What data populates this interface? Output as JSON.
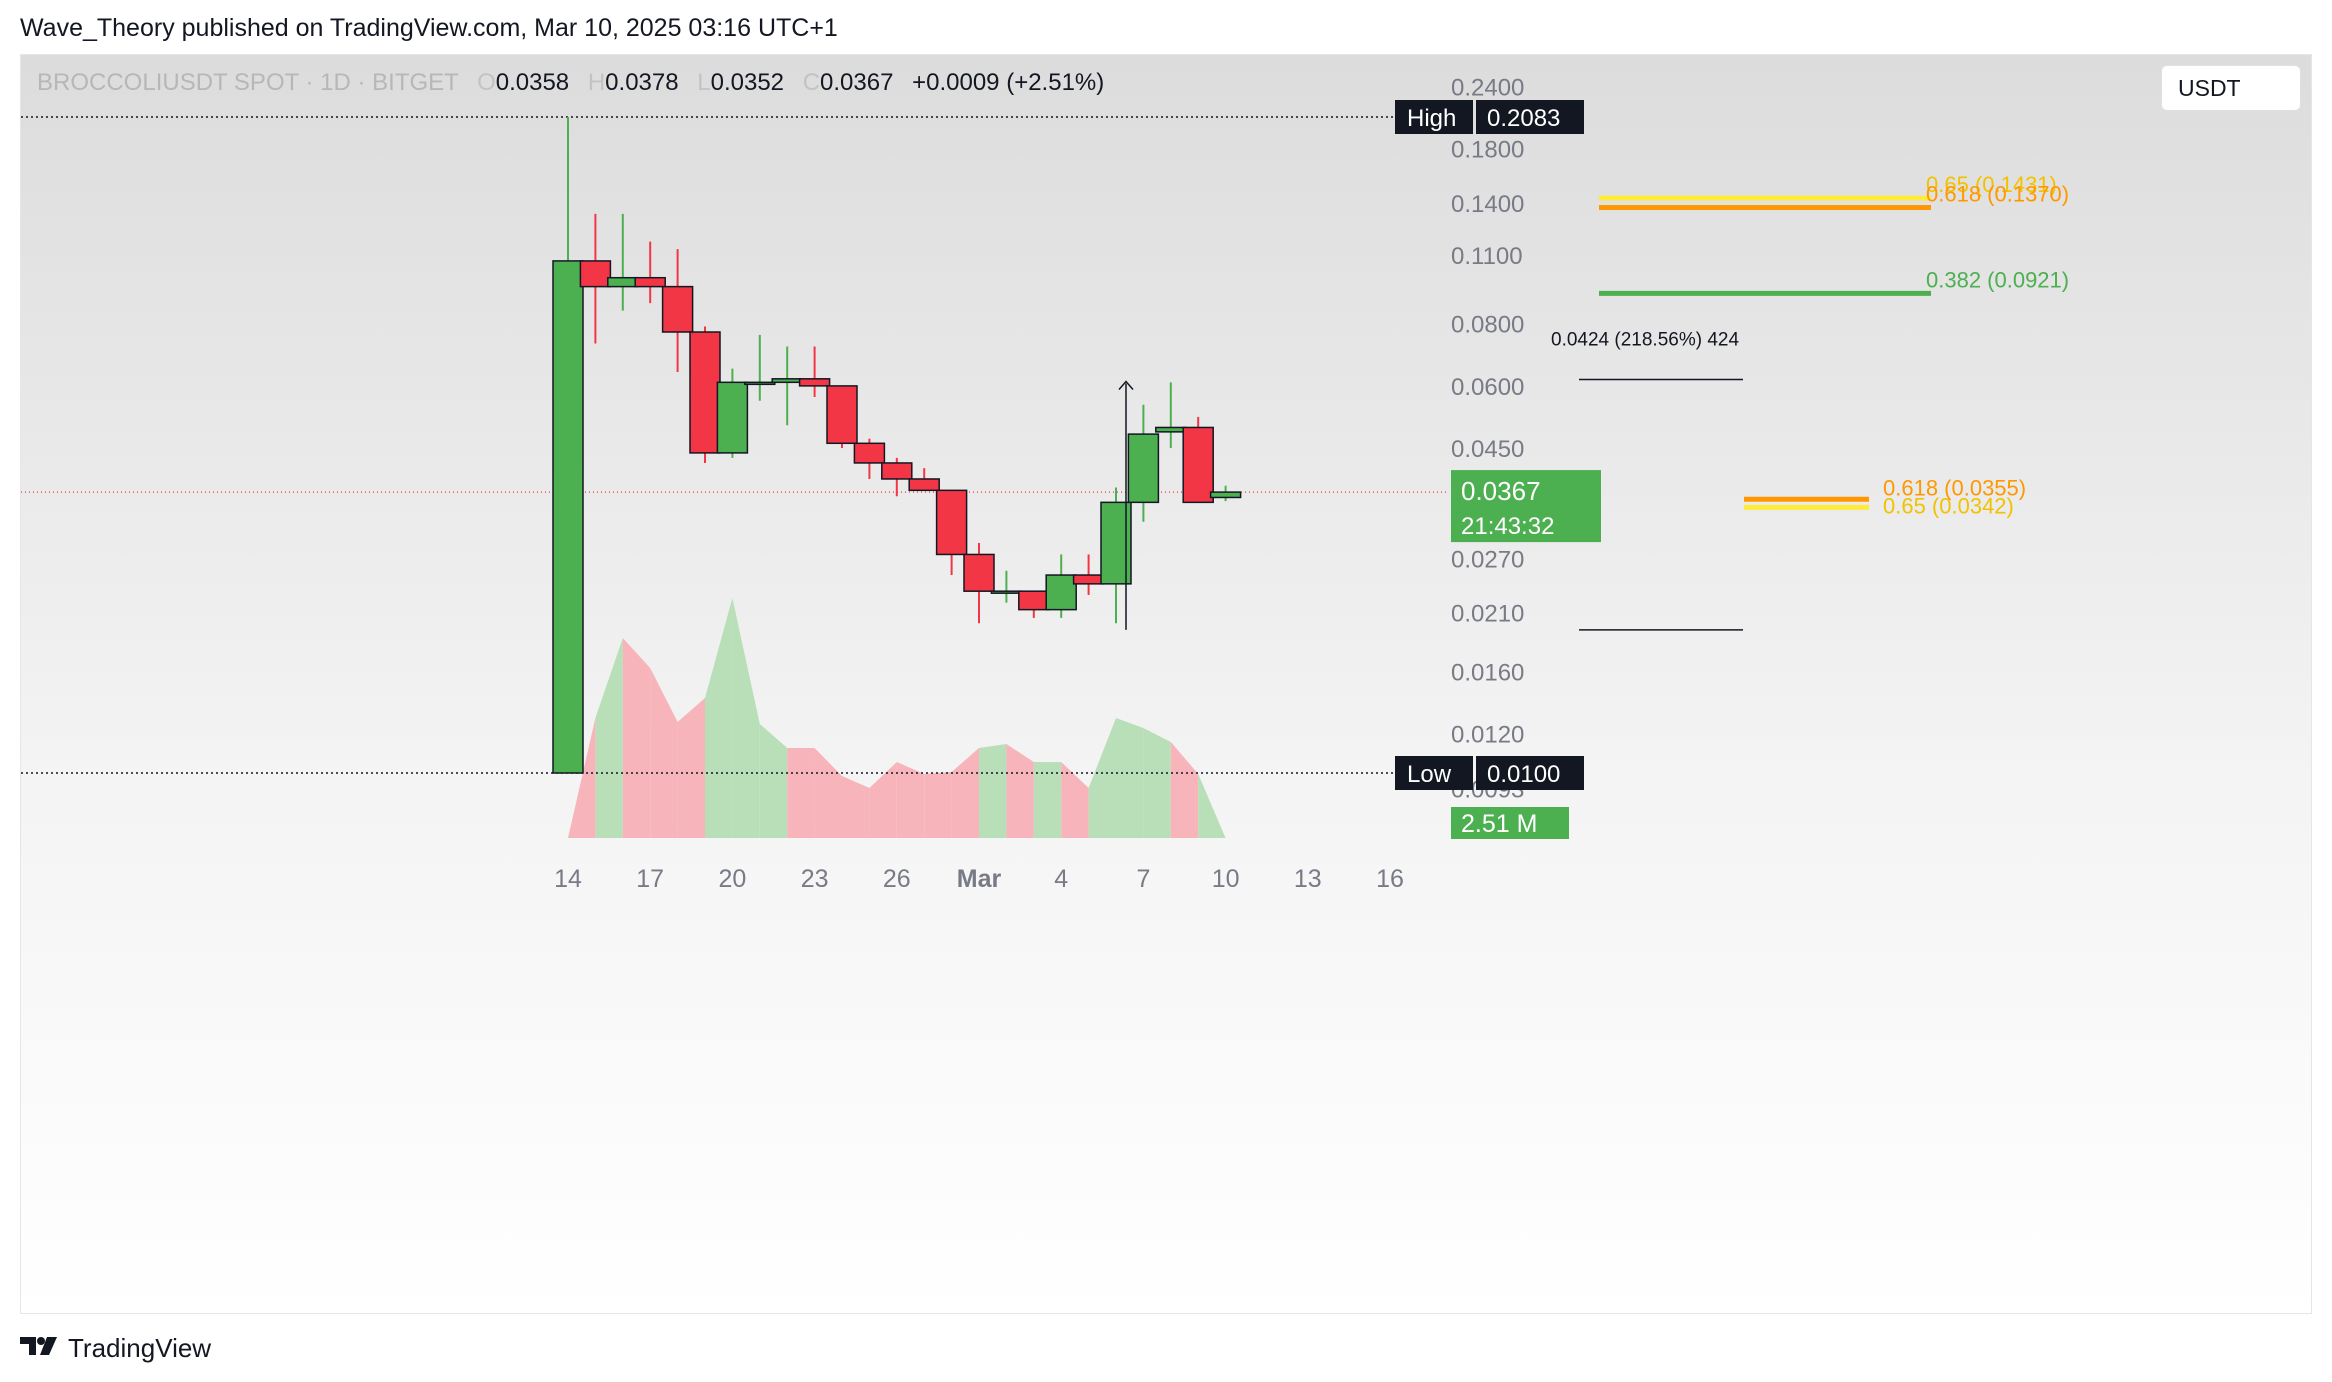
{
  "header": {
    "publisher": "Wave_Theory published on TradingView.com, Mar 10, 2025 03:16 UTC+1"
  },
  "legend": {
    "symbol": "BROCCOLIUSDT SPOT · 1D · BITGET",
    "o_label": "O",
    "o": "0.0358",
    "h_label": "H",
    "h": "0.0378",
    "l_label": "L",
    "l": "0.0352",
    "c_label": "C",
    "c": "0.0367",
    "change": "+0.0009 (+2.51%)"
  },
  "currency_button": "USDT",
  "footer": {
    "logo_icon": "tradingview-logo-icon",
    "brand": "TradingView"
  },
  "colors": {
    "up": "#4caf50",
    "down": "#f23645",
    "vol_up": "#b9dfb9",
    "vol_down": "#f7b4bb",
    "fib_orange": "#ff9800",
    "fib_yellow": "#ffeb3b",
    "fib_green": "#4caf50"
  },
  "chart_data": {
    "type": "candlestick",
    "price_scale": "log",
    "y_ticks": [
      0.24,
      0.18,
      0.14,
      0.11,
      0.08,
      0.06,
      0.045,
      0.027,
      0.021,
      0.016,
      0.012,
      0.0093
    ],
    "y_tick_labels": [
      "0.2400",
      "0.1800",
      "0.1400",
      "0.1100",
      "0.0800",
      "0.0600",
      "0.0450",
      "0.0270",
      "0.0210",
      "0.0160",
      "0.0120",
      "0.0093"
    ],
    "x_tick_labels": [
      {
        "day": 0,
        "label": "14"
      },
      {
        "day": 3,
        "label": "17"
      },
      {
        "day": 6,
        "label": "20"
      },
      {
        "day": 9,
        "label": "23"
      },
      {
        "day": 12,
        "label": "26"
      },
      {
        "day": 15,
        "label": "Mar"
      },
      {
        "day": 18,
        "label": "4"
      },
      {
        "day": 21,
        "label": "7"
      },
      {
        "day": 24,
        "label": "10"
      },
      {
        "day": 27,
        "label": "13"
      },
      {
        "day": 30,
        "label": "16"
      }
    ],
    "candles": [
      {
        "o": 0.01,
        "h": 0.2083,
        "l": 0.01,
        "c": 0.107
      },
      {
        "o": 0.107,
        "h": 0.133,
        "l": 0.073,
        "c": 0.095
      },
      {
        "o": 0.095,
        "h": 0.133,
        "l": 0.085,
        "c": 0.099
      },
      {
        "o": 0.099,
        "h": 0.117,
        "l": 0.088,
        "c": 0.095
      },
      {
        "o": 0.095,
        "h": 0.113,
        "l": 0.064,
        "c": 0.077
      },
      {
        "o": 0.077,
        "h": 0.079,
        "l": 0.042,
        "c": 0.044
      },
      {
        "o": 0.044,
        "h": 0.065,
        "l": 0.043,
        "c": 0.061
      },
      {
        "o": 0.061,
        "h": 0.076,
        "l": 0.056,
        "c": 0.061
      },
      {
        "o": 0.061,
        "h": 0.072,
        "l": 0.05,
        "c": 0.062
      },
      {
        "o": 0.062,
        "h": 0.072,
        "l": 0.057,
        "c": 0.06
      },
      {
        "o": 0.06,
        "h": 0.059,
        "l": 0.045,
        "c": 0.046
      },
      {
        "o": 0.046,
        "h": 0.047,
        "l": 0.039,
        "c": 0.042
      },
      {
        "o": 0.042,
        "h": 0.043,
        "l": 0.036,
        "c": 0.039
      },
      {
        "o": 0.039,
        "h": 0.041,
        "l": 0.037,
        "c": 0.037
      },
      {
        "o": 0.037,
        "h": 0.037,
        "l": 0.025,
        "c": 0.0275
      },
      {
        "o": 0.0275,
        "h": 0.029,
        "l": 0.02,
        "c": 0.0232
      },
      {
        "o": 0.0232,
        "h": 0.0255,
        "l": 0.022,
        "c": 0.0232
      },
      {
        "o": 0.0232,
        "h": 0.0232,
        "l": 0.0205,
        "c": 0.0213
      },
      {
        "o": 0.0213,
        "h": 0.0275,
        "l": 0.0205,
        "c": 0.025
      },
      {
        "o": 0.025,
        "h": 0.0275,
        "l": 0.0228,
        "c": 0.024
      },
      {
        "o": 0.024,
        "h": 0.0375,
        "l": 0.02,
        "c": 0.035
      },
      {
        "o": 0.035,
        "h": 0.055,
        "l": 0.032,
        "c": 0.048
      },
      {
        "o": 0.0485,
        "h": 0.061,
        "l": 0.045,
        "c": 0.0495
      },
      {
        "o": 0.0495,
        "h": 0.052,
        "l": 0.035,
        "c": 0.035
      },
      {
        "o": 0.0358,
        "h": 0.0378,
        "l": 0.0352,
        "c": 0.0367
      }
    ],
    "volume": [
      0.0,
      0.6,
      1.0,
      0.85,
      0.58,
      0.7,
      1.2,
      0.57,
      0.45,
      0.45,
      0.31,
      0.25,
      0.38,
      0.32,
      0.33,
      0.45,
      0.47,
      0.38,
      0.38,
      0.25,
      0.6,
      0.55,
      0.48,
      0.32,
      0.0
    ],
    "high_marker": {
      "label": "High",
      "value": "0.2083",
      "price": 0.2083
    },
    "low_marker": {
      "label": "Low",
      "value": "0.0100",
      "price": 0.01
    },
    "last_price": {
      "value": "0.0367",
      "countdown": "21:43:32",
      "price": 0.0367
    },
    "volume_label": "2.51 M",
    "fib_levels": [
      {
        "label": "0.65 (0.1431)",
        "price": 0.1431,
        "color": "#ffeb3b"
      },
      {
        "label": "0.618 (0.1370)",
        "price": 0.137,
        "color": "#ff9800"
      },
      {
        "label": "0.382 (0.0921)",
        "price": 0.0921,
        "color": "#4caf50"
      },
      {
        "label": "0.618 (0.0355)",
        "price": 0.0355,
        "color": "#ff9800"
      },
      {
        "label": "0.65 (0.0342)",
        "price": 0.0342,
        "color": "#ffeb3b"
      }
    ],
    "measurement": {
      "label": "0.0424 (218.56%) 424",
      "from": 0.0194,
      "to": 0.0618
    }
  }
}
